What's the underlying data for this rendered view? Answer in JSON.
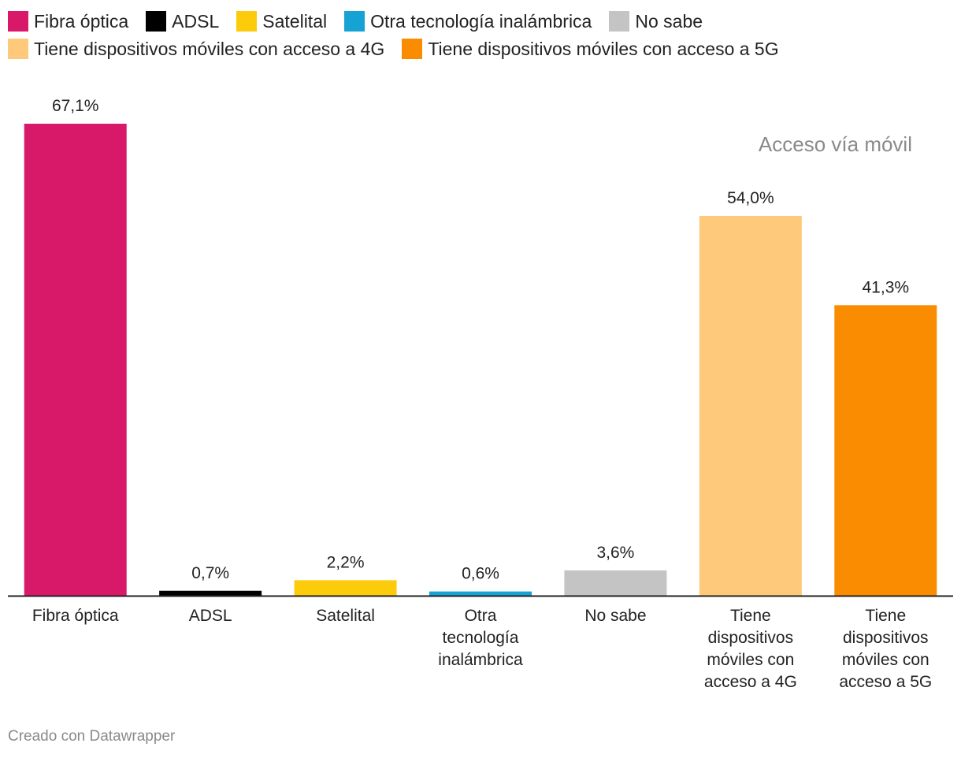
{
  "chart_data": {
    "type": "bar",
    "title": "",
    "xlabel": "",
    "ylabel": "",
    "ylim": [
      0,
      67.1
    ],
    "grid": false,
    "legend_placement": "top",
    "categories": [
      "Fibra óptica",
      "ADSL",
      "Satelital",
      "Otra tecnología inalámbrica",
      "No sabe",
      "Tiene dispositivos móviles con acceso a 4G",
      "Tiene dispositivos móviles con acceso a 5G"
    ],
    "category_label_lines": [
      [
        "Fibra óptica"
      ],
      [
        "ADSL"
      ],
      [
        "Satelital"
      ],
      [
        "Otra",
        "tecnología",
        "inalámbrica"
      ],
      [
        "No sabe"
      ],
      [
        "Tiene",
        "dispositivos",
        "móviles con",
        "acceso a 4G"
      ],
      [
        "Tiene",
        "dispositivos",
        "móviles con",
        "acceso a 5G"
      ]
    ],
    "values": [
      67.1,
      0.7,
      2.2,
      0.6,
      3.6,
      54.0,
      41.3
    ],
    "value_labels": [
      "67,1%",
      "0,7%",
      "2,2%",
      "0,6%",
      "3,6%",
      "54,0%",
      "41,3%"
    ],
    "colors": [
      "#d81868",
      "#000000",
      "#fccb0b",
      "#16a3d4",
      "#c4c4c4",
      "#fec97a",
      "#f98c00"
    ],
    "annotations": [
      {
        "text": "Acceso vía móvil"
      }
    ]
  },
  "legend": [
    {
      "label": "Fibra óptica",
      "color": "#d81868"
    },
    {
      "label": "ADSL",
      "color": "#000000"
    },
    {
      "label": "Satelital",
      "color": "#fccb0b"
    },
    {
      "label": "Otra tecnología inalámbrica",
      "color": "#16a3d4"
    },
    {
      "label": "No sabe",
      "color": "#c4c4c4"
    },
    {
      "label": "Tiene dispositivos móviles con acceso a 4G",
      "color": "#fec97a"
    },
    {
      "label": "Tiene dispositivos móviles con acceso a 5G",
      "color": "#f98c00"
    }
  ],
  "footer": {
    "credit": "Creado con Datawrapper"
  }
}
